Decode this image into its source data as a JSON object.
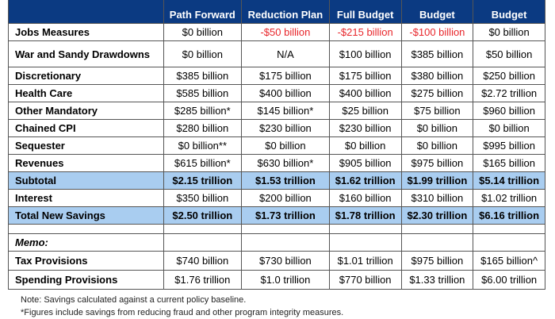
{
  "headers": [
    "",
    "Path Forward",
    "Reduction Plan",
    "Full Budget",
    "Budget",
    "Budget"
  ],
  "rows": [
    {
      "label": "Jobs Measures",
      "cells": [
        "$0 billion",
        "-$50 billion",
        "-$215 billion",
        "-$100 billion",
        "$0 billion"
      ],
      "neg": [
        false,
        true,
        true,
        true,
        false
      ]
    },
    {
      "label": "War and Sandy Drawdowns",
      "cells": [
        "$0 billion",
        "N/A",
        "$100 billion",
        "$385 billion",
        "$50 billion"
      ],
      "tall": true
    },
    {
      "label": "Discretionary",
      "cells": [
        "$385 billion",
        "$175 billion",
        "$175 billion",
        "$380 billion",
        "$250 billion"
      ]
    },
    {
      "label": "Health Care",
      "cells": [
        "$585 billion",
        "$400 billion",
        "$400 billion",
        "$275 billion",
        "$2.72 trillion"
      ]
    },
    {
      "label": "Other Mandatory",
      "cells": [
        "$285 billion*",
        "$145 billion*",
        "$25 billion",
        "$75 billion",
        "$960 billion"
      ]
    },
    {
      "label": "Chained CPI",
      "cells": [
        "$280 billion",
        "$230 billion",
        "$230 billion",
        "$0 billion",
        "$0 billion"
      ]
    },
    {
      "label": "Sequester",
      "cells": [
        "$0 billion**",
        "$0 billion",
        "$0 billion",
        "$0 billion",
        "$995 billion"
      ]
    },
    {
      "label": "Revenues",
      "cells": [
        "$615 billion*",
        "$630 billion*",
        "$905 billion",
        "$975 billion",
        "$165 billion"
      ]
    },
    {
      "label": "Subtotal",
      "cells": [
        "$2.15 trillion",
        "$1.53 trillion",
        "$1.62 trillion",
        "$1.99 trillion",
        "$5.14 trillion"
      ],
      "hl": true
    },
    {
      "label": "Interest",
      "cells": [
        "$350 billion",
        "$200 billion",
        "$160 billion",
        "$310 billion",
        "$1.02 trillion"
      ]
    },
    {
      "label": "Total New Savings",
      "cells": [
        "$2.50 trillion",
        "$1.73 trillion",
        "$1.78 trillion",
        "$2.30 trillion",
        "$6.16 trillion"
      ],
      "hl": true
    },
    {
      "label": "",
      "cells": [
        "",
        "",
        "",
        "",
        ""
      ],
      "gap": true
    },
    {
      "label": "Memo:",
      "cells": [
        "",
        "",
        "",
        "",
        ""
      ],
      "memo": true
    },
    {
      "label": "Tax Provisions",
      "cells": [
        "$740 billion",
        "$730 billion",
        "$1.01 trillion",
        "$975 billion",
        "$165 billion^"
      ],
      "big": true
    },
    {
      "label": "Spending Provisions",
      "cells": [
        "$1.76 trillion",
        "$1.0 trillion",
        "$770 billion",
        "$1.33 trillion",
        "$6.00 trillion"
      ],
      "big": true
    }
  ],
  "notes": [
    "Note:  Savings calculated against a current policy baseline.",
    "*Figures include savings from reducing fraud and other program integrity measures."
  ],
  "colors": {
    "header": "#0b3a82",
    "highlight": "#a9cdf0",
    "negative": "#e8262b"
  }
}
